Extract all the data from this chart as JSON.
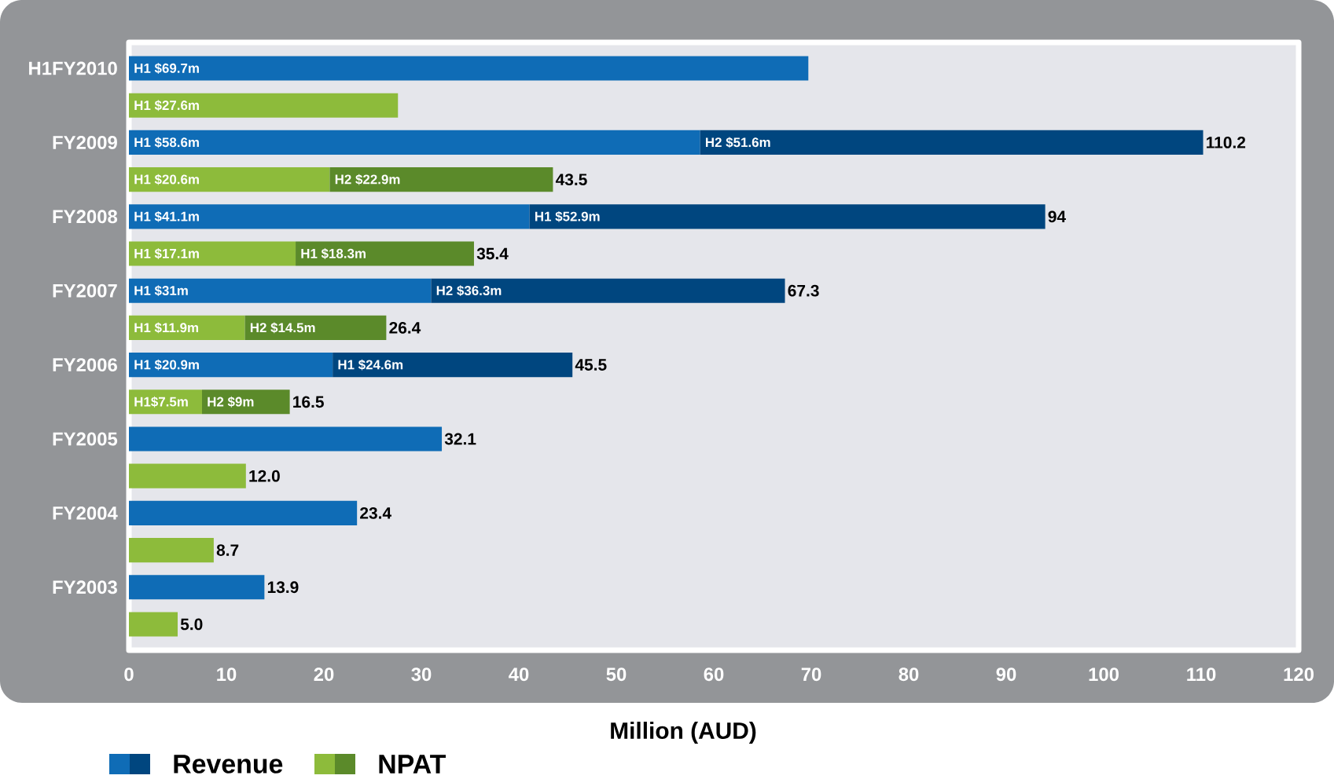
{
  "chart_data": {
    "type": "bar",
    "orientation": "horizontal",
    "stacked": true,
    "xlabel": "Million (AUD)",
    "legend": "bottom left",
    "categories": [
      "H1FY2010",
      null,
      "FY2009",
      null,
      "FY2008",
      null,
      "FY2007",
      null,
      "FY2006",
      null,
      "FY2005",
      null,
      "FY2004",
      null,
      "FY2003",
      null
    ],
    "xlim": [
      0,
      120
    ],
    "xticks": [
      0,
      10,
      20,
      30,
      40,
      50,
      60,
      70,
      80,
      90,
      100,
      110,
      120
    ],
    "series": [
      {
        "name": "Revenue",
        "color": "#0f6cb6",
        "values": [
          69.7,
          null,
          58.6,
          null,
          41.1,
          null,
          31,
          null,
          20.9,
          null,
          32.1,
          null,
          23.4,
          null,
          13.9,
          null
        ],
        "value_labels": [
          "H1 $69.7m",
          null,
          "H1 $58.6m",
          null,
          "H1 $41.1m",
          null,
          "H1 $31m",
          null,
          "H1 $20.9m",
          null,
          null,
          null,
          null,
          null,
          null,
          null
        ]
      },
      {
        "color": "#00467f",
        "values": [
          null,
          null,
          51.6,
          null,
          52.9,
          null,
          36.3,
          null,
          24.6,
          null,
          null,
          null,
          null,
          null,
          null,
          null
        ],
        "value_labels": [
          null,
          null,
          "H2 $51.6m",
          null,
          "H1 $52.9m",
          null,
          "H2 $36.3m",
          null,
          "H1 $24.6m",
          null,
          null,
          null,
          null,
          null,
          null,
          null
        ]
      },
      {
        "name": "NPAT",
        "color": "#8dbb3b",
        "values": [
          null,
          27.6,
          null,
          20.6,
          null,
          17.1,
          null,
          11.9,
          null,
          7.5,
          null,
          12.0,
          null,
          8.7,
          null,
          5.0
        ],
        "value_labels": [
          null,
          "H1 $27.6m",
          null,
          "H1 $20.6m",
          null,
          "H1 $17.1m",
          null,
          "H1 $11.9m",
          null,
          "H1$7.5m",
          null,
          null,
          null,
          null,
          null,
          null
        ]
      },
      {
        "color": "#5b8a2a",
        "values": [
          null,
          null,
          null,
          22.9,
          null,
          18.3,
          null,
          14.5,
          null,
          9,
          null,
          null,
          null,
          null,
          null,
          null
        ],
        "value_labels": [
          null,
          null,
          null,
          "H2 $22.9m",
          null,
          "H1 $18.3m",
          null,
          "H2 $14.5m",
          null,
          "H2 $9m",
          null,
          null,
          null,
          null,
          null,
          null
        ]
      }
    ],
    "totals": [
      null,
      null,
      "110.2",
      "43.5",
      "94",
      "35.4",
      "67.3",
      "26.4",
      "45.5",
      "16.5",
      "32.1",
      "12.0",
      "23.4",
      "8.7",
      "13.9",
      "5.0"
    ]
  }
}
